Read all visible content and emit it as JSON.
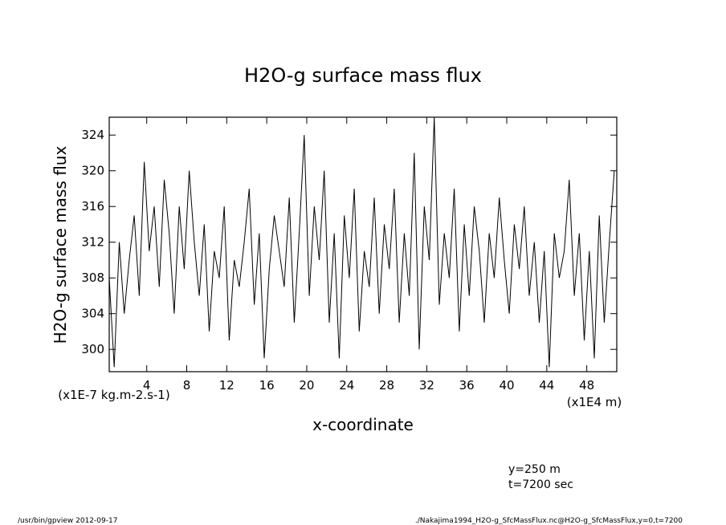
{
  "chart_data": {
    "type": "line",
    "title": "H2O-g surface mass flux",
    "xlabel": "x-coordinate",
    "ylabel": "H2O-g surface mass flux",
    "x_unit": "(x1E4 m)",
    "y_unit": "(x1E-7 kg.m-2.s-1)",
    "xlim": [
      0.25,
      51.0
    ],
    "ylim": [
      297.5,
      326.0
    ],
    "x_ticks": [
      4,
      8,
      12,
      16,
      20,
      24,
      28,
      32,
      36,
      40,
      44,
      48
    ],
    "y_ticks": [
      300,
      304,
      308,
      312,
      316,
      320,
      324
    ],
    "grid": false,
    "series": [
      {
        "x": [
          0.25,
          0.75,
          1.25,
          1.75,
          2.25,
          2.75,
          3.25,
          3.75,
          4.25,
          4.75,
          5.25,
          5.75,
          6.25,
          6.75,
          7.25,
          7.75,
          8.25,
          8.75,
          9.25,
          9.75,
          10.25,
          10.75,
          11.25,
          11.75,
          12.25,
          12.75,
          13.25,
          13.75,
          14.25,
          14.75,
          15.25,
          15.75,
          16.25,
          16.75,
          17.25,
          17.75,
          18.25,
          18.75,
          19.25,
          19.75,
          20.25,
          20.75,
          21.25,
          21.75,
          22.25,
          22.75,
          23.25,
          23.75,
          24.25,
          24.75,
          25.25,
          25.75,
          26.25,
          26.75,
          27.25,
          27.75,
          28.25,
          28.75,
          29.25,
          29.75,
          30.25,
          30.75,
          31.25,
          31.75,
          32.25,
          32.75,
          33.25,
          33.75,
          34.25,
          34.75,
          35.25,
          35.75,
          36.25,
          36.75,
          37.25,
          37.75,
          38.25,
          38.75,
          39.25,
          39.75,
          40.25,
          40.75,
          41.25,
          41.75,
          42.25,
          42.75,
          43.25,
          43.75,
          44.25,
          44.75,
          45.25,
          45.75,
          46.25,
          46.75,
          47.25,
          47.75,
          48.25,
          48.75,
          49.25,
          49.75,
          50.25,
          50.75
        ],
        "values": [
          308,
          298,
          312,
          304,
          310,
          315,
          306,
          321,
          311,
          316,
          307,
          319,
          313,
          304,
          316,
          309,
          320,
          312,
          306,
          314,
          302,
          311,
          308,
          316,
          301,
          310,
          307,
          312,
          318,
          305,
          313,
          299,
          309,
          315,
          311,
          307,
          317,
          303,
          313,
          324,
          306,
          316,
          310,
          320,
          303,
          313,
          299,
          315,
          308,
          318,
          302,
          311,
          307,
          317,
          304,
          314,
          309,
          318,
          303,
          313,
          306,
          322,
          300,
          316,
          310,
          326,
          305,
          313,
          308,
          318,
          302,
          314,
          306,
          316,
          311,
          303,
          313,
          308,
          317,
          310,
          304,
          314,
          309,
          316,
          306,
          312,
          303,
          311,
          298,
          313,
          308,
          311,
          319,
          306,
          313,
          301,
          311,
          299,
          315,
          303,
          312,
          320
        ]
      }
    ]
  },
  "footer": {
    "y_info": "y=250  m",
    "t_info": "t=7200 sec",
    "program": "/usr/bin/gpview   2012-09-17",
    "source": "./Nakajima1994_H2O-g_SfcMassFlux.nc@H2O-g_SfcMassFlux,y=0,t=7200"
  }
}
